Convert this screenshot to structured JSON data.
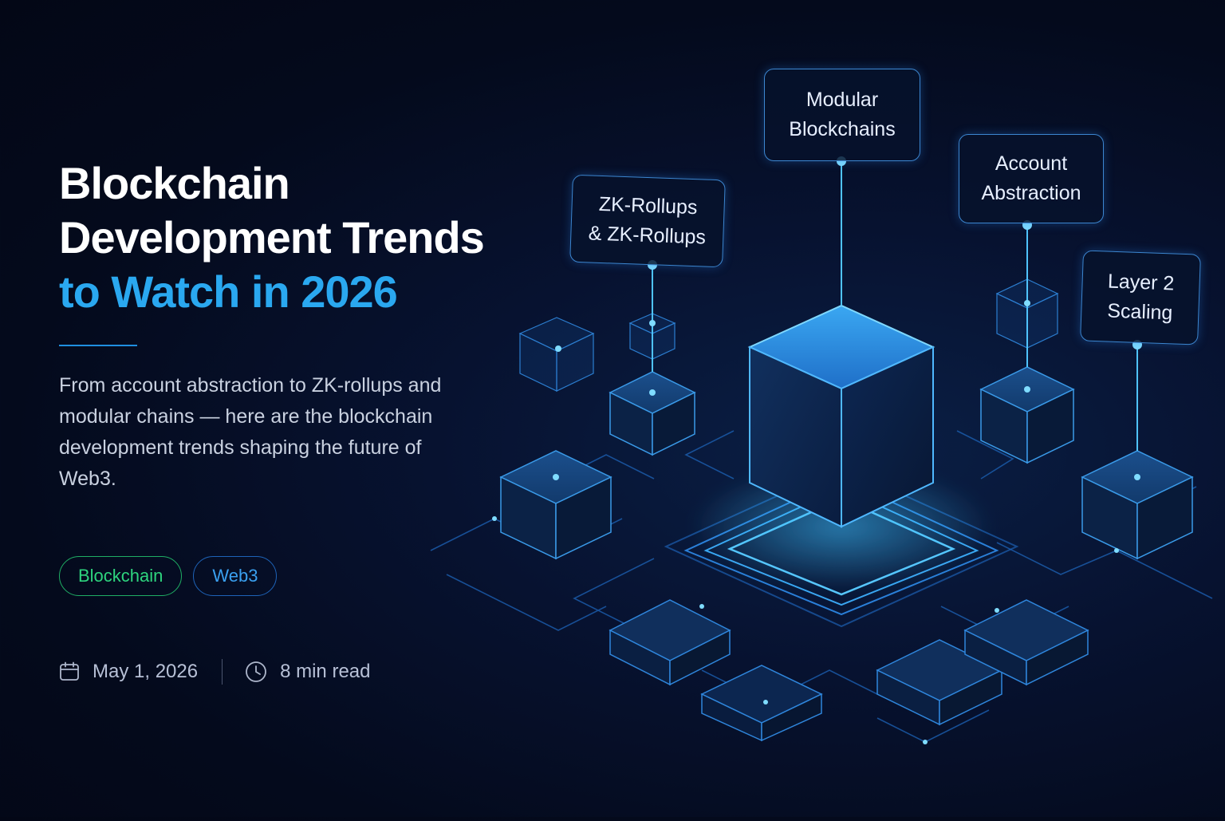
{
  "title": {
    "line1": "Blockchain",
    "line2": "Development Trends",
    "line3": "to Watch in 2026"
  },
  "description": "From account abstraction to ZK-rollups and modular chains — here are the blockchain development trends shaping the future of Web3.",
  "tags": [
    "Blockchain",
    "Web3"
  ],
  "meta": {
    "date_icon": "calendar-icon",
    "date": "May 1, 2026",
    "time_icon": "clock-icon",
    "read_time": "8 min read"
  },
  "illustration_labels": {
    "modular": [
      "Modular",
      "Blockchains"
    ],
    "zk": [
      "ZK-Rollups",
      "& ZK-Rollups"
    ],
    "account": [
      "Account",
      "Abstraction"
    ],
    "layer2": [
      "Layer 2",
      "Scaling"
    ]
  },
  "colors": {
    "background": "#040a1c",
    "accent_blue": "#2aa8f0",
    "tag_green": "#2ed47e",
    "tag_blue": "#3aa0f0",
    "glow": "#4fc3ff"
  }
}
